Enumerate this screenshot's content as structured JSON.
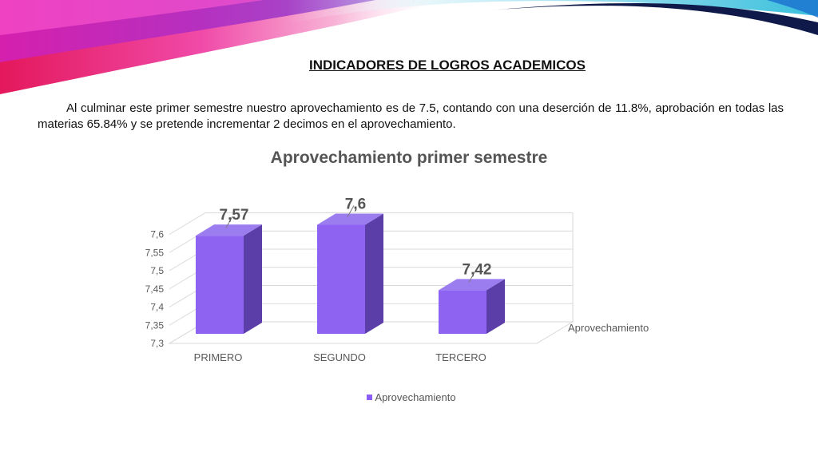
{
  "heading": "INDICADORES DE LOGROS ACADEMICOS",
  "intro": "Al culminar este primer semestre nuestro aprovechamiento es de 7.5, contando con una deserción de 11.8%, aprobación en todas las materias 65.84% y se pretende incrementar 2 decimos en el aprovechamiento.",
  "chart_data": {
    "type": "bar",
    "title": "Aprovechamiento primer semestre",
    "categories": [
      "PRIMERO",
      "SEGUNDO",
      "TERCERO"
    ],
    "series": [
      {
        "name": "Aprovechamiento",
        "values": [
          7.57,
          7.6,
          7.42
        ]
      }
    ],
    "data_labels": [
      "7,57",
      "7,6",
      "7,42"
    ],
    "ylim": [
      7.3,
      7.6
    ],
    "yticks": [
      "7,3",
      "7,35",
      "7,4",
      "7,45",
      "7,5",
      "7,55",
      "7,6"
    ],
    "depth_axis_label": "Aprovechamiento",
    "legend_position": "bottom",
    "grid": true,
    "style": "3d-column",
    "colors": {
      "bar_front": "#8f63f2",
      "bar_side": "#5c3ea8",
      "bar_top": "#9b7df0",
      "grid": "#d9d9d9"
    }
  }
}
